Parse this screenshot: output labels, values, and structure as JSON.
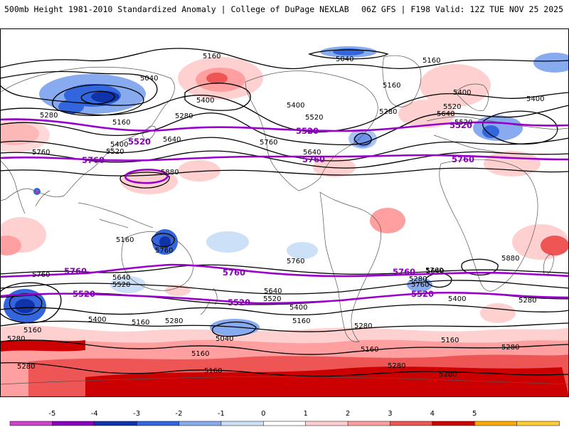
{
  "header": {
    "left_title": "500mb Height 1981-2010 Standardized Anomaly | College of DuPage NEXLAB",
    "right_title": "06Z GFS | F198 Valid: 12Z TUE NOV 25 2025"
  },
  "colors": {
    "contour_black": "#000000",
    "contour_purple": "#9900cc",
    "label_purple": "#8800bb",
    "land_outline": "#555555",
    "frame": "#000000"
  },
  "legend": {
    "ticks": [
      "-5",
      "-4",
      "-3",
      "-2",
      "-1",
      "0",
      "1",
      "2",
      "3",
      "4",
      "5"
    ],
    "colors": [
      "#cc44cc",
      "#8800bb",
      "#1133aa",
      "#3366dd",
      "#88aaee",
      "#cce0f8",
      "#ffffff",
      "#ffd0d0",
      "#ff9f9f",
      "#ee5555",
      "#cc0000",
      "#ffaa00",
      "#ffcc33"
    ]
  },
  "contour_labels": {
    "black": [
      {
        "text": "5160",
        "pos": "north-pacific-top"
      },
      {
        "text": "5040",
        "pos": "alaska-north"
      },
      {
        "text": "5160",
        "pos": "canada-north"
      },
      {
        "text": "5040",
        "pos": "siberia"
      },
      {
        "text": "5400",
        "pos": "bering"
      },
      {
        "text": "5280",
        "pos": "asia-east"
      },
      {
        "text": "5280",
        "pos": "pacific-north"
      },
      {
        "text": "5160",
        "pos": "japan-north"
      },
      {
        "text": "5400",
        "pos": "japan"
      },
      {
        "text": "5520",
        "pos": "japan-south"
      },
      {
        "text": "5640",
        "pos": "pacific-mid"
      },
      {
        "text": "5400",
        "pos": "canada"
      },
      {
        "text": "5520",
        "pos": "great-lakes"
      },
      {
        "text": "5760",
        "pos": "us-west"
      },
      {
        "text": "5640",
        "pos": "us-south"
      },
      {
        "text": "5280",
        "pos": "atlantic-north"
      },
      {
        "text": "5160",
        "pos": "greenland"
      },
      {
        "text": "5400",
        "pos": "europe-north"
      },
      {
        "text": "5520",
        "pos": "europe"
      },
      {
        "text": "5640",
        "pos": "mediterranean"
      },
      {
        "text": "5400",
        "pos": "russia"
      },
      {
        "text": "5760",
        "pos": "asia-west"
      },
      {
        "text": "5880",
        "pos": "pacific-ridge"
      },
      {
        "text": "5760",
        "pos": "australia-north"
      },
      {
        "text": "5760",
        "pos": "pacific-south"
      },
      {
        "text": "5760",
        "pos": "atlantic-south"
      },
      {
        "text": "5880",
        "pos": "africa-south"
      },
      {
        "text": "5760",
        "pos": "indian-ocean"
      },
      {
        "text": "5640",
        "pos": "australia"
      },
      {
        "text": "5520",
        "pos": "australia-south"
      },
      {
        "text": "5640",
        "pos": "south-america"
      },
      {
        "text": "5520",
        "pos": "patagonia"
      },
      {
        "text": "5400",
        "pos": "south-pacific"
      },
      {
        "text": "5160",
        "pos": "tasman"
      },
      {
        "text": "5280",
        "pos": "new-zealand"
      },
      {
        "text": "5400",
        "pos": "australia-sw"
      },
      {
        "text": "5160",
        "pos": "indian-south"
      },
      {
        "text": "5280",
        "pos": "antarctic-1"
      },
      {
        "text": "5160",
        "pos": "southern-ocean-1"
      },
      {
        "text": "5040",
        "pos": "southern-ocean-2"
      },
      {
        "text": "5160",
        "pos": "southern-ocean-3"
      },
      {
        "text": "5280",
        "pos": "southern-ocean-4"
      },
      {
        "text": "5160",
        "pos": "southern-ocean-5"
      },
      {
        "text": "5400",
        "pos": "south-atlantic"
      },
      {
        "text": "5280",
        "pos": "south-atlantic-2"
      },
      {
        "text": "5160",
        "pos": "south-atlantic-3"
      },
      {
        "text": "5280",
        "pos": "south-indian"
      },
      {
        "text": "5160",
        "pos": "antarctic-2"
      },
      {
        "text": "5280",
        "pos": "antarctic-3"
      },
      {
        "text": "5160",
        "pos": "antarctic-4"
      },
      {
        "text": "5280",
        "pos": "antarctic-5"
      },
      {
        "text": "5280",
        "pos": "antarctic-6"
      },
      {
        "text": "5280",
        "pos": "antarctic-7"
      },
      {
        "text": "5640",
        "pos": "south-africa"
      },
      {
        "text": "5760",
        "pos": "south-africa-2"
      },
      {
        "text": "5520",
        "pos": "south-africa-3"
      },
      {
        "text": "5520",
        "pos": "indian-ocean-2"
      }
    ],
    "purple": [
      {
        "text": "5520",
        "pos": "asia-east"
      },
      {
        "text": "5760",
        "pos": "asia-west"
      },
      {
        "text": "5520",
        "pos": "us"
      },
      {
        "text": "5760",
        "pos": "us-south"
      },
      {
        "text": "5520",
        "pos": "europe"
      },
      {
        "text": "5760",
        "pos": "mediterranean"
      },
      {
        "text": "5760",
        "pos": "indian-ocean"
      },
      {
        "text": "5760",
        "pos": "pacific-south"
      },
      {
        "text": "5760",
        "pos": "atlantic-south"
      },
      {
        "text": "5520",
        "pos": "australia-south"
      },
      {
        "text": "5520",
        "pos": "pacific-southern"
      },
      {
        "text": "5520",
        "pos": "atlantic-southern"
      }
    ]
  }
}
